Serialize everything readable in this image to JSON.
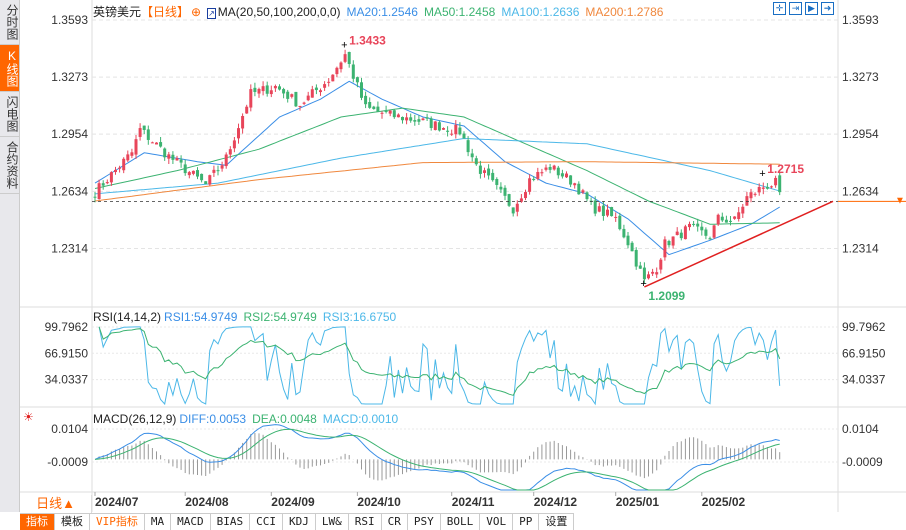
{
  "sidebar": {
    "items": [
      {
        "label": "分时图"
      },
      {
        "label": "K线图",
        "active": true
      },
      {
        "label": "闪电图"
      },
      {
        "label": "合约资料"
      }
    ]
  },
  "header": {
    "symbol": "英镑美元",
    "period": "【日线】",
    "ma_title": "MA(20,50,100,200,0,0)",
    "ma20": "MA20:1.2546",
    "ma50": "MA50:1.2458",
    "ma100": "MA100:1.2636",
    "ma200": "MA200:1.2786"
  },
  "rsi_header": {
    "title": "RSI(14,14,2)",
    "rsi1": "RSI1:54.9749",
    "rsi2": "RSI2:54.9749",
    "rsi3": "RSI3:16.6750"
  },
  "macd_header": {
    "title": "MACD(26,12,9)",
    "diff": "DIFF:0.0053",
    "dea": "DEA:0.0048",
    "macd": "MACD:0.0010"
  },
  "period_button": "日线▲",
  "tabs": [
    {
      "label": "指标",
      "active": true
    },
    {
      "label": "模板"
    },
    {
      "label": "VIP指标",
      "vip": true
    },
    {
      "label": "MA"
    },
    {
      "label": "MACD"
    },
    {
      "label": "BIAS"
    },
    {
      "label": "CCI"
    },
    {
      "label": "KDJ"
    },
    {
      "label": "LW&"
    },
    {
      "label": "RSI"
    },
    {
      "label": "CR"
    },
    {
      "label": "PSY"
    },
    {
      "label": "BOLL"
    },
    {
      "label": "VOL"
    },
    {
      "label": "PP"
    },
    {
      "label": "设置"
    }
  ],
  "colors": {
    "up": "#e8455a",
    "down": "#3cb371",
    "ma20": "#3a8ee6",
    "ma50": "#3cb371",
    "ma100": "#4cb8e8",
    "ma200": "#f0883e",
    "accent": "#ff6600",
    "trend": "#e02020"
  },
  "chart_data": [
    {
      "type": "candlestick",
      "title": "英镑美元 日线",
      "price_ticks": [
        "1.3593",
        "1.3273",
        "1.2954",
        "1.2634",
        "1.2314"
      ],
      "x_ticks": [
        "2024/07",
        "2024/08",
        "2024/09",
        "2024/10",
        "2024/11",
        "2024/12",
        "2025/01",
        "2025/02"
      ],
      "x_tick_days": [
        0,
        22,
        43,
        64,
        87,
        107,
        127,
        148
      ],
      "days": 168,
      "close_keypoints": [
        [
          0,
          1.263
        ],
        [
          9,
          1.285
        ],
        [
          11,
          1.298
        ],
        [
          18,
          1.283
        ],
        [
          27,
          1.267
        ],
        [
          32,
          1.282
        ],
        [
          38,
          1.318
        ],
        [
          44,
          1.322
        ],
        [
          50,
          1.312
        ],
        [
          57,
          1.326
        ],
        [
          61,
          1.34
        ],
        [
          66,
          1.31
        ],
        [
          72,
          1.306
        ],
        [
          79,
          1.303
        ],
        [
          89,
          1.297
        ],
        [
          93,
          1.278
        ],
        [
          99,
          1.262
        ],
        [
          102,
          1.254
        ],
        [
          106,
          1.27
        ],
        [
          111,
          1.277
        ],
        [
          117,
          1.268
        ],
        [
          121,
          1.255
        ],
        [
          127,
          1.248
        ],
        [
          130,
          1.235
        ],
        [
          134,
          1.213
        ],
        [
          137,
          1.221
        ],
        [
          139,
          1.234
        ],
        [
          145,
          1.243
        ],
        [
          150,
          1.238
        ],
        [
          152,
          1.248
        ],
        [
          156,
          1.247
        ],
        [
          159,
          1.26
        ],
        [
          163,
          1.266
        ],
        [
          166,
          1.268
        ],
        [
          167,
          1.26
        ]
      ],
      "ma_series": {
        "ma20": [
          [
            0,
            1.268
          ],
          [
            12,
            1.285
          ],
          [
            25,
            1.28
          ],
          [
            32,
            1.278
          ],
          [
            45,
            1.305
          ],
          [
            55,
            1.315
          ],
          [
            62,
            1.325
          ],
          [
            70,
            1.315
          ],
          [
            80,
            1.305
          ],
          [
            90,
            1.3
          ],
          [
            100,
            1.28
          ],
          [
            110,
            1.268
          ],
          [
            120,
            1.262
          ],
          [
            130,
            1.248
          ],
          [
            140,
            1.228
          ],
          [
            150,
            1.236
          ],
          [
            160,
            1.245
          ],
          [
            167,
            1.2546
          ]
        ],
        "ma50": [
          [
            0,
            1.265
          ],
          [
            20,
            1.275
          ],
          [
            40,
            1.287
          ],
          [
            60,
            1.305
          ],
          [
            75,
            1.31
          ],
          [
            90,
            1.305
          ],
          [
            105,
            1.29
          ],
          [
            120,
            1.275
          ],
          [
            135,
            1.258
          ],
          [
            150,
            1.245
          ],
          [
            167,
            1.2458
          ]
        ],
        "ma100": [
          [
            0,
            1.262
          ],
          [
            30,
            1.268
          ],
          [
            60,
            1.282
          ],
          [
            90,
            1.293
          ],
          [
            120,
            1.29
          ],
          [
            150,
            1.275
          ],
          [
            167,
            1.2636
          ]
        ],
        "ma200": [
          [
            0,
            1.258
          ],
          [
            40,
            1.27
          ],
          [
            80,
            1.2795
          ],
          [
            120,
            1.28
          ],
          [
            167,
            1.2786
          ]
        ]
      },
      "annotations": [
        {
          "label": "1.3433",
          "day": 61,
          "price": 1.3433,
          "color": "up"
        },
        {
          "label": "1.2715",
          "day": 163,
          "price": 1.2715,
          "color": "up"
        },
        {
          "label": "1.2099",
          "day": 134,
          "price": 1.2099,
          "color": "down"
        }
      ],
      "trendline": [
        [
          134,
          1.2099
        ],
        [
          180,
          1.2578
        ]
      ],
      "current_price_line": 1.2578,
      "ylim": [
        1.196,
        1.3593
      ]
    },
    {
      "type": "line",
      "title": "RSI(14,14,2)",
      "ticks": [
        "99.7962",
        "66.9150",
        "34.0337"
      ],
      "ylim": [
        0,
        110
      ]
    },
    {
      "type": "bar+line",
      "title": "MACD(26,12,9)",
      "ticks": [
        "0.0104",
        "-0.0009"
      ]
    }
  ]
}
